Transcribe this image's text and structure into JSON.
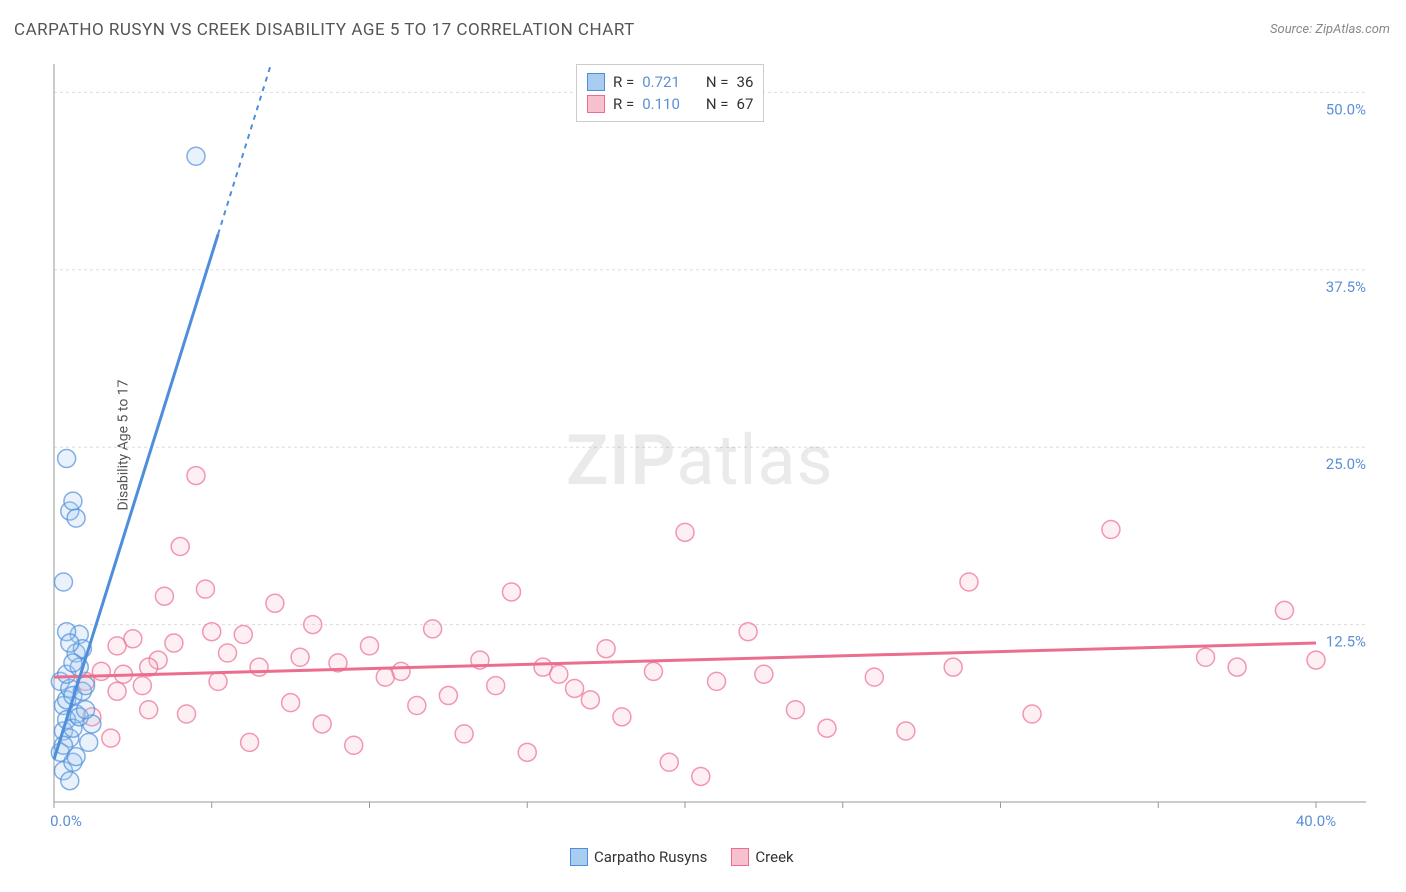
{
  "title": "CARPATHO RUSYN VS CREEK DISABILITY AGE 5 TO 17 CORRELATION CHART",
  "source_label": "Source: ZipAtlas.com",
  "y_axis_label": "Disability Age 5 to 17",
  "watermark": {
    "bold": "ZIP",
    "light": "atlas"
  },
  "chart": {
    "type": "scatter",
    "background_color": "#ffffff",
    "grid_color": "#dddddd",
    "axis_color": "#999999",
    "xlim": [
      0,
      40
    ],
    "ylim": [
      0,
      52
    ],
    "x_ticks": [
      0,
      5,
      10,
      15,
      20,
      25,
      30,
      35,
      40
    ],
    "x_tick_labels": {
      "0": "0.0%",
      "40": "40.0%"
    },
    "y_gridlines": [
      12.5,
      25.0,
      37.5,
      50.0
    ],
    "y_tick_labels": [
      "12.5%",
      "25.0%",
      "37.5%",
      "50.0%"
    ],
    "marker_radius": 9,
    "marker_fill_opacity": 0.25,
    "marker_stroke_width": 1.5,
    "series": [
      {
        "name": "Carpatho Rusyns",
        "color_stroke": "#4f8edb",
        "color_fill": "#a9cdf0",
        "r_label": "R =",
        "r_value": "0.721",
        "n_label": "N =",
        "n_value": "36",
        "trend": {
          "x1": 0,
          "y1": 3,
          "x2": 5.2,
          "y2": 40,
          "dash_to_x": 7.3,
          "dash_to_y": 55
        },
        "points": [
          [
            0.2,
            8.5
          ],
          [
            0.3,
            6.8
          ],
          [
            0.4,
            7.2
          ],
          [
            0.5,
            8.0
          ],
          [
            0.6,
            7.5
          ],
          [
            0.7,
            6.2
          ],
          [
            0.3,
            5.0
          ],
          [
            0.4,
            5.8
          ],
          [
            0.5,
            4.5
          ],
          [
            0.6,
            5.2
          ],
          [
            0.8,
            6.0
          ],
          [
            0.9,
            7.8
          ],
          [
            1.0,
            8.2
          ],
          [
            0.4,
            9.0
          ],
          [
            0.7,
            10.5
          ],
          [
            0.8,
            11.8
          ],
          [
            0.2,
            3.5
          ],
          [
            0.3,
            2.2
          ],
          [
            0.5,
            1.5
          ],
          [
            0.6,
            2.8
          ],
          [
            1.1,
            4.2
          ],
          [
            1.2,
            5.5
          ],
          [
            0.3,
            15.5
          ],
          [
            0.5,
            20.5
          ],
          [
            0.6,
            21.2
          ],
          [
            0.7,
            20.0
          ],
          [
            0.4,
            24.2
          ],
          [
            4.5,
            45.5
          ],
          [
            0.8,
            9.5
          ],
          [
            0.9,
            10.8
          ],
          [
            0.4,
            12.0
          ],
          [
            0.5,
            11.2
          ],
          [
            0.6,
            9.8
          ],
          [
            0.3,
            4.0
          ],
          [
            0.7,
            3.2
          ],
          [
            1.0,
            6.5
          ]
        ]
      },
      {
        "name": "Creek",
        "color_stroke": "#ec6e8f",
        "color_fill": "#f7c0ce",
        "r_label": "R =",
        "r_value": "0.110",
        "n_label": "N =",
        "n_value": "67",
        "trend": {
          "x1": 0,
          "y1": 8.8,
          "x2": 40,
          "y2": 11.2
        },
        "points": [
          [
            1.0,
            8.5
          ],
          [
            1.2,
            6.0
          ],
          [
            1.5,
            9.2
          ],
          [
            1.8,
            4.5
          ],
          [
            2.0,
            7.8
          ],
          [
            2.2,
            9.0
          ],
          [
            2.5,
            11.5
          ],
          [
            2.8,
            8.2
          ],
          [
            3.0,
            6.5
          ],
          [
            3.3,
            10.0
          ],
          [
            3.5,
            14.5
          ],
          [
            3.8,
            11.2
          ],
          [
            4.0,
            18.0
          ],
          [
            4.5,
            23.0
          ],
          [
            4.8,
            15.0
          ],
          [
            5.0,
            12.0
          ],
          [
            5.2,
            8.5
          ],
          [
            5.5,
            10.5
          ],
          [
            6.0,
            11.8
          ],
          [
            6.2,
            4.2
          ],
          [
            6.5,
            9.5
          ],
          [
            7.0,
            14.0
          ],
          [
            7.5,
            7.0
          ],
          [
            7.8,
            10.2
          ],
          [
            8.2,
            12.5
          ],
          [
            8.5,
            5.5
          ],
          [
            9.0,
            9.8
          ],
          [
            9.5,
            4.0
          ],
          [
            10.0,
            11.0
          ],
          [
            10.5,
            8.8
          ],
          [
            11.0,
            9.2
          ],
          [
            11.5,
            6.8
          ],
          [
            12.0,
            12.2
          ],
          [
            12.5,
            7.5
          ],
          [
            13.0,
            4.8
          ],
          [
            13.5,
            10.0
          ],
          [
            14.0,
            8.2
          ],
          [
            14.5,
            14.8
          ],
          [
            15.0,
            3.5
          ],
          [
            15.5,
            9.5
          ],
          [
            16.0,
            9.0
          ],
          [
            16.5,
            8.0
          ],
          [
            17.0,
            7.2
          ],
          [
            17.5,
            10.8
          ],
          [
            18.0,
            6.0
          ],
          [
            19.0,
            9.2
          ],
          [
            19.5,
            2.8
          ],
          [
            20.0,
            19.0
          ],
          [
            20.5,
            1.8
          ],
          [
            21.0,
            8.5
          ],
          [
            22.0,
            12.0
          ],
          [
            22.5,
            9.0
          ],
          [
            23.5,
            6.5
          ],
          [
            24.5,
            5.2
          ],
          [
            26.0,
            8.8
          ],
          [
            27.0,
            5.0
          ],
          [
            28.5,
            9.5
          ],
          [
            29.0,
            15.5
          ],
          [
            31.0,
            6.2
          ],
          [
            33.5,
            19.2
          ],
          [
            36.5,
            10.2
          ],
          [
            37.5,
            9.5
          ],
          [
            39.0,
            13.5
          ],
          [
            40.0,
            10.0
          ],
          [
            2.0,
            11.0
          ],
          [
            3.0,
            9.5
          ],
          [
            4.2,
            6.2
          ]
        ]
      }
    ]
  },
  "bottom_legend": {
    "items": [
      "Carpatho Rusyns",
      "Creek"
    ]
  }
}
